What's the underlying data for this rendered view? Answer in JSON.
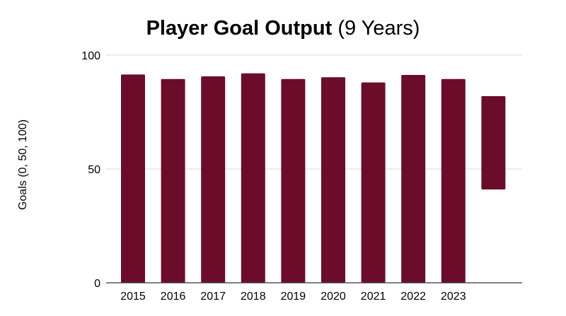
{
  "chart_data": {
    "type": "bar",
    "title_bold": "Player Goal Output",
    "title_rest": "(9 Years)",
    "xlabel": "",
    "ylabel": "Goals (0, 50, 100)",
    "ylim": [
      0,
      100
    ],
    "yticks": [
      "0",
      "50",
      "100"
    ],
    "grid": true,
    "categories": [
      "2015",
      "2016",
      "2017",
      "2018",
      "2019",
      "2020",
      "2021",
      "2022",
      "2023",
      ""
    ],
    "values": [
      91.5,
      89.5,
      90.7,
      92,
      89.5,
      90.3,
      88,
      91.3,
      89.5,
      82
    ],
    "bar_bases": [
      0,
      0,
      0,
      0,
      0,
      0,
      0,
      0,
      0,
      41
    ],
    "bar_color": "#6b0d2a",
    "grid_color": "#d9d9d9"
  }
}
